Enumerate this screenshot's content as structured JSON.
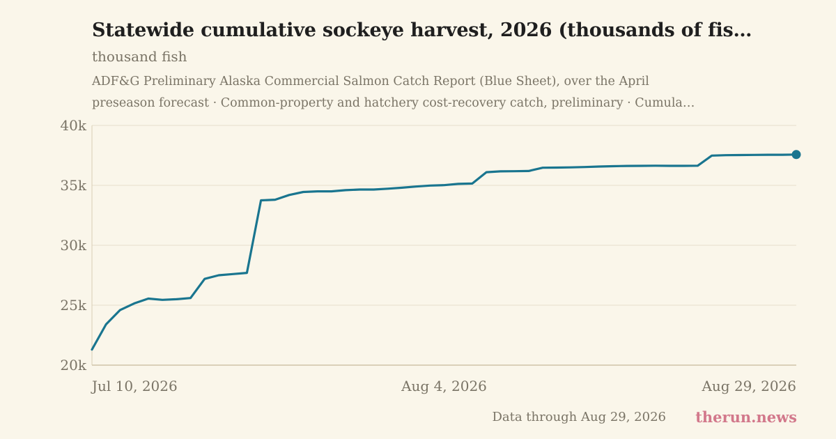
{
  "chart_data": {
    "type": "line",
    "title": "Statewide cumulative sockeye harvest, 2026 (thousands of fis…",
    "subtitle": "thousand fish",
    "source_lines": [
      "ADF&G Preliminary Alaska Commercial Salmon Catch Report (Blue Sheet), over the April",
      "preseason forecast · Common-property and hatchery cost-recovery catch, preliminary · Cumula…"
    ],
    "x_tick_labels": [
      "Jul 10, 2026",
      "Aug 4, 2026",
      "Aug 29, 2026"
    ],
    "y_tick_labels": [
      "20k",
      "25k",
      "30k",
      "35k",
      "40k"
    ],
    "ylim": [
      20000,
      40000
    ],
    "xlim": [
      "2026-07-10",
      "2026-08-29"
    ],
    "grid": true,
    "color": "#19758f",
    "series": [
      {
        "x": [
          "2026-07-10",
          "2026-07-11",
          "2026-07-12",
          "2026-07-13",
          "2026-07-14",
          "2026-07-15",
          "2026-07-16",
          "2026-07-17",
          "2026-07-18",
          "2026-07-19",
          "2026-07-20",
          "2026-07-21",
          "2026-07-22",
          "2026-07-23",
          "2026-07-24",
          "2026-07-25",
          "2026-07-26",
          "2026-07-27",
          "2026-07-28",
          "2026-07-29",
          "2026-07-30",
          "2026-07-31",
          "2026-08-01",
          "2026-08-02",
          "2026-08-03",
          "2026-08-04",
          "2026-08-05",
          "2026-08-06",
          "2026-08-07",
          "2026-08-08",
          "2026-08-09",
          "2026-08-10",
          "2026-08-11",
          "2026-08-12",
          "2026-08-13",
          "2026-08-14",
          "2026-08-15",
          "2026-08-16",
          "2026-08-17",
          "2026-08-18",
          "2026-08-19",
          "2026-08-20",
          "2026-08-21",
          "2026-08-22",
          "2026-08-23",
          "2026-08-24",
          "2026-08-25",
          "2026-08-26",
          "2026-08-27",
          "2026-08-28",
          "2026-08-29"
        ],
        "y": [
          21300,
          23400,
          24600,
          25150,
          25550,
          25450,
          25500,
          25600,
          27200,
          27500,
          27600,
          27700,
          33750,
          33800,
          34200,
          34450,
          34500,
          34500,
          34600,
          34650,
          34650,
          34720,
          34800,
          34900,
          34980,
          35020,
          35120,
          35150,
          36100,
          36170,
          36180,
          36200,
          36470,
          36480,
          36500,
          36530,
          36570,
          36600,
          36620,
          36630,
          36640,
          36630,
          36630,
          36640,
          37480,
          37520,
          37530,
          37540,
          37550,
          37550,
          37570
        ]
      }
    ]
  },
  "footer": {
    "note": "Data through Aug 29, 2026",
    "brand": "therun.news"
  }
}
